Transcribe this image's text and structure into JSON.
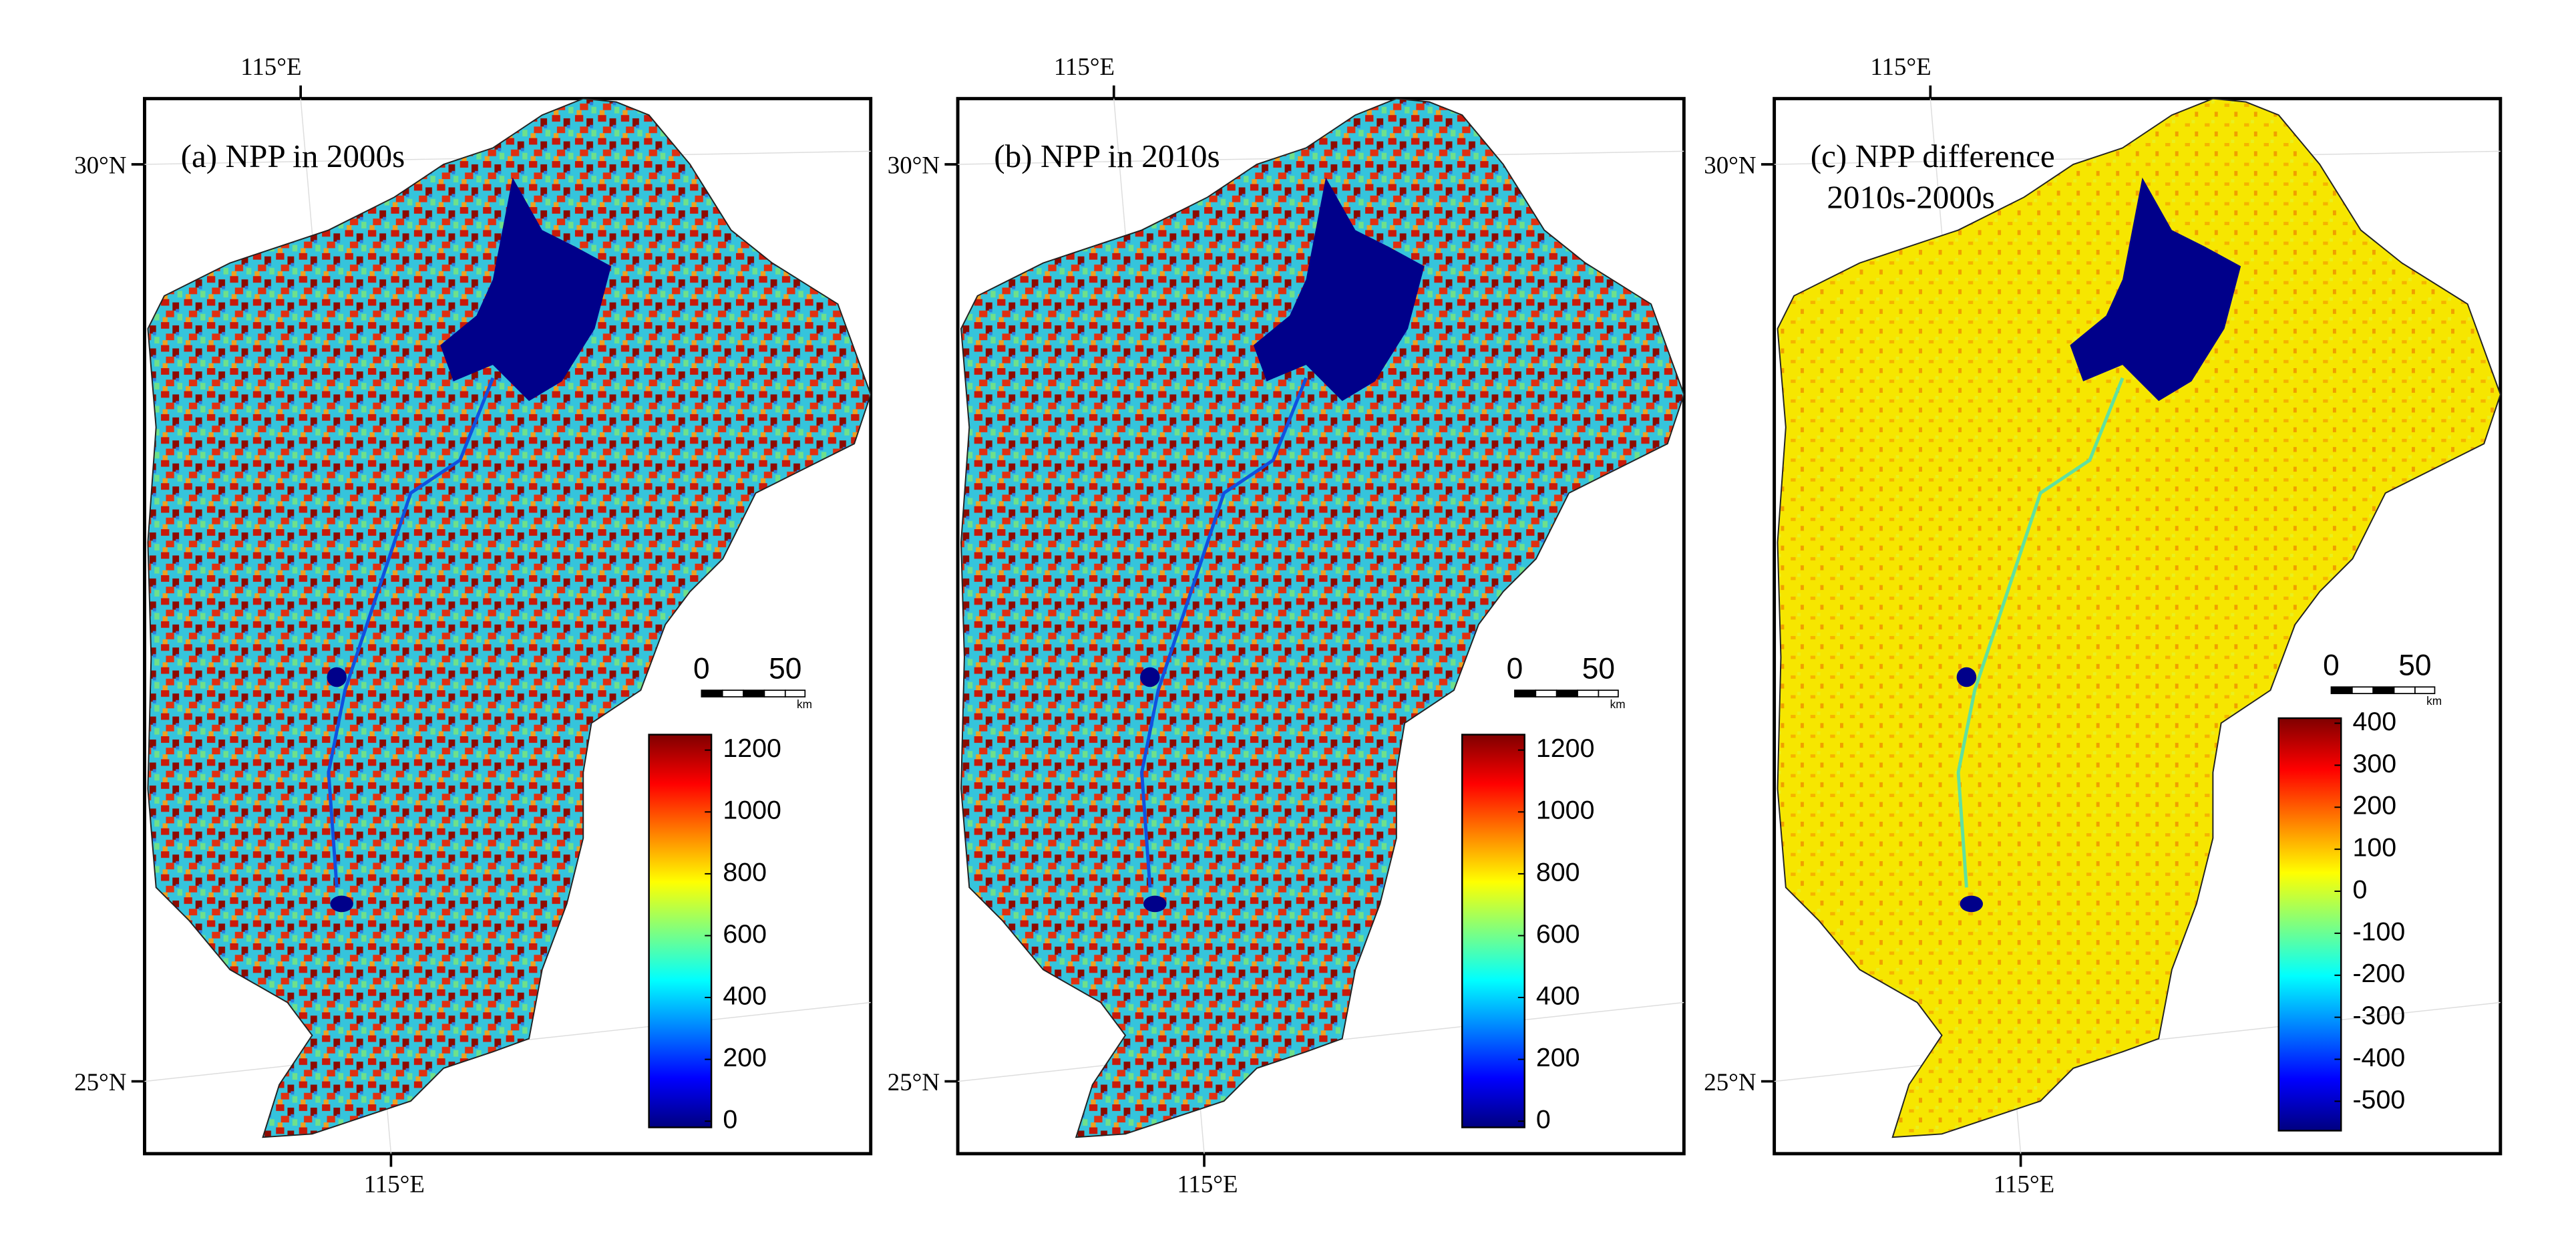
{
  "panels": [
    {
      "title": [
        "(a) NPP in 2000s"
      ],
      "lon_label_top": "115°E",
      "lon_label_bottom": "115°E",
      "lat_labels": [
        "30°N",
        "25°N"
      ],
      "scale_bar": {
        "ticks": [
          0,
          50
        ],
        "unit": "km"
      },
      "map_fill": "npp",
      "colorbar": {
        "lim": [
          -20,
          1250
        ],
        "ticks": [
          0,
          200,
          400,
          600,
          800,
          1000,
          1200
        ],
        "colors": [
          "#00007f",
          "#0000ff",
          "#0080ff",
          "#00ffff",
          "#7fff7f",
          "#ffff00",
          "#ff8000",
          "#ff0000",
          "#7f0000"
        ]
      }
    },
    {
      "title": [
        "(b) NPP in 2010s"
      ],
      "lon_label_top": "115°E",
      "lon_label_bottom": "115°E",
      "lat_labels": [
        "30°N",
        "25°N"
      ],
      "scale_bar": {
        "ticks": [
          0,
          50
        ],
        "unit": "km"
      },
      "map_fill": "npp",
      "colorbar": {
        "lim": [
          -20,
          1250
        ],
        "ticks": [
          0,
          200,
          400,
          600,
          800,
          1000,
          1200
        ],
        "colors": [
          "#00007f",
          "#0000ff",
          "#0080ff",
          "#00ffff",
          "#7fff7f",
          "#ffff00",
          "#ff8000",
          "#ff0000",
          "#7f0000"
        ]
      }
    },
    {
      "title": [
        "(c) NPP difference",
        "2010s-2000s"
      ],
      "lon_label_top": "115°E",
      "lon_label_bottom": "115°E",
      "lat_labels": [
        "30°N",
        "25°N"
      ],
      "scale_bar": {
        "ticks": [
          0,
          50
        ],
        "unit": "km"
      },
      "map_fill": "diff",
      "colorbar": {
        "lim": [
          -570,
          412
        ],
        "ticks": [
          400,
          300,
          200,
          100,
          0,
          -100,
          -200,
          -300,
          -400,
          -500
        ],
        "colors": [
          "#00007f",
          "#0000ff",
          "#0080ff",
          "#00ffff",
          "#7fff7f",
          "#ffff00",
          "#ff8000",
          "#ff0000",
          "#7f0000"
        ]
      }
    }
  ]
}
